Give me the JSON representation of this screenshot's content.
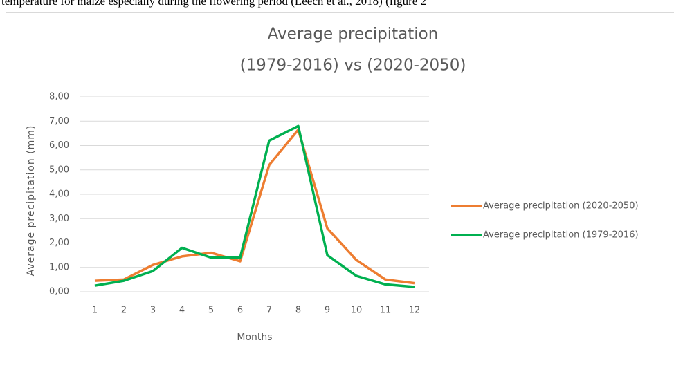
{
  "header_text": "temperature for maize especially during the flowering period (Leech et al., 2018) (figure 2",
  "chart_data": {
    "type": "line",
    "title": [
      "Average precipitation",
      "(1979-2016) vs (2020-2050)"
    ],
    "x_label": "Months",
    "y_label": "Average precipitation (mm)",
    "categories": [
      "1",
      "2",
      "3",
      "4",
      "5",
      "6",
      "7",
      "8",
      "9",
      "10",
      "11",
      "12"
    ],
    "series": [
      {
        "name": "Average precipitation (2020-2050)",
        "color": "#ed7d31",
        "values": [
          0.45,
          0.5,
          1.1,
          1.45,
          1.6,
          1.25,
          5.2,
          6.65,
          2.6,
          1.3,
          0.5,
          0.35
        ]
      },
      {
        "name": "Average precipitation (1979-2016)",
        "color": "#00b050",
        "values": [
          0.25,
          0.45,
          0.85,
          1.8,
          1.4,
          1.4,
          6.2,
          6.8,
          1.5,
          0.65,
          0.3,
          0.2
        ]
      }
    ],
    "ylim": [
      0,
      8
    ],
    "yticks": [
      {
        "value": 0,
        "label": "0,00"
      },
      {
        "value": 1,
        "label": "1,00"
      },
      {
        "value": 2,
        "label": "2,00"
      },
      {
        "value": 3,
        "label": "3,00"
      },
      {
        "value": 4,
        "label": "4,00"
      },
      {
        "value": 5,
        "label": "5,00"
      },
      {
        "value": 6,
        "label": "6,00"
      },
      {
        "value": 7,
        "label": "7,00"
      },
      {
        "value": 8,
        "label": "8,00"
      }
    ],
    "grid": true,
    "legend": "right"
  }
}
